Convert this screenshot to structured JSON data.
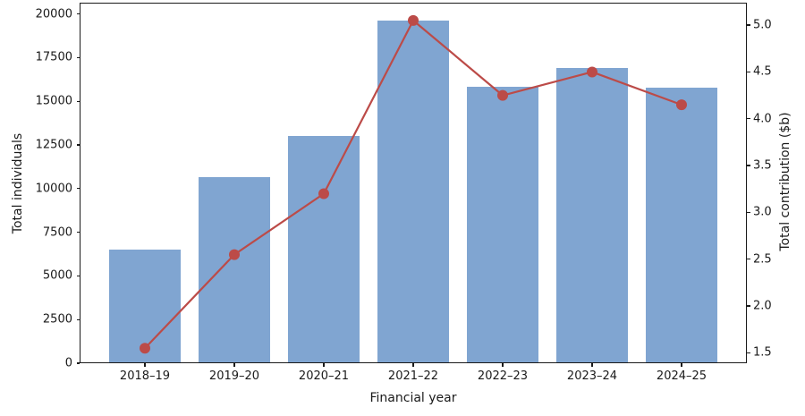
{
  "chart_data": {
    "type": "bar",
    "subtype": "bar-line-combo",
    "title": "",
    "xlabel": "Financial year",
    "ylabel_left": "Total individuals",
    "ylabel_right": "Total contribution ($b)",
    "categories": [
      "2018–19",
      "2019–20",
      "2020–21",
      "2021–22",
      "2022–23",
      "2023–24",
      "2024–25"
    ],
    "series": [
      {
        "name": "Total individuals",
        "type": "bar",
        "axis": "left",
        "color": "#80A5D1",
        "values": [
          6500,
          10650,
          13000,
          19650,
          15850,
          16900,
          15800
        ]
      },
      {
        "name": "Total contribution ($b)",
        "type": "line",
        "axis": "right",
        "color": "#BC4B48",
        "marker": "circle",
        "values": [
          1.55,
          2.55,
          3.2,
          5.05,
          4.25,
          4.5,
          4.15
        ]
      }
    ],
    "yticks_left": [
      0,
      2500,
      5000,
      7500,
      10000,
      12500,
      15000,
      17500,
      20000
    ],
    "yticks_right": [
      1.5,
      2.0,
      2.5,
      3.0,
      3.5,
      4.0,
      4.5,
      5.0
    ],
    "ylim_left": [
      0,
      20650
    ],
    "ylim_right": [
      1.39,
      5.24
    ],
    "grid": false,
    "legend_position": "none",
    "spine_color": "#1a1a1a",
    "background": "#ffffff"
  }
}
